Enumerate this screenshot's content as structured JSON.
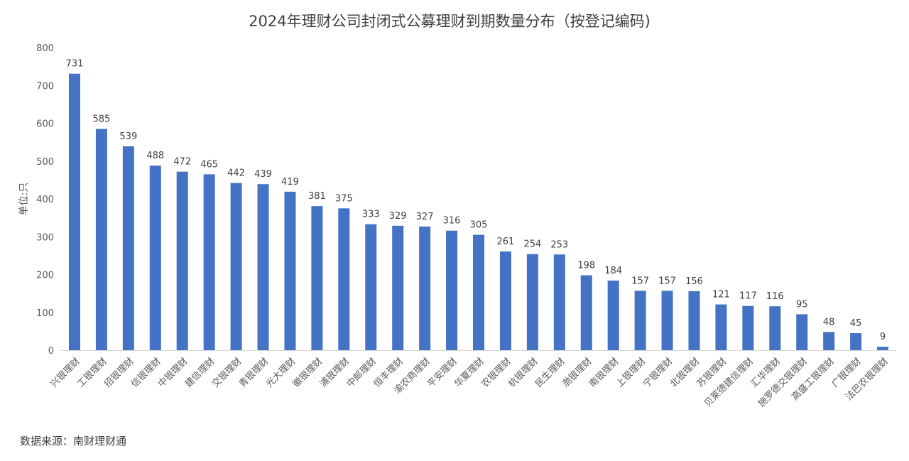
{
  "chart_data": {
    "type": "bar",
    "title": "2024年理财公司封闭式公募理财到期数量分布（按登记编码)",
    "ylabel": "单位:只",
    "ylim": [
      0,
      800
    ],
    "yticks": [
      0,
      100,
      200,
      300,
      400,
      500,
      600,
      700,
      800
    ],
    "grid": false,
    "categories": [
      "兴银理财",
      "工银理财",
      "招银理财",
      "信银理财",
      "中银理财",
      "建信理财",
      "交银理财",
      "青银理财",
      "光大理财",
      "徽银理财",
      "浦银理财",
      "中邮理财",
      "恒丰理财",
      "渝农商理财",
      "平安理财",
      "华夏理财",
      "农银理财",
      "杭银理财",
      "民生理财",
      "渤银理财",
      "南银理财",
      "上银理财",
      "宁银理财",
      "北银理财",
      "苏银理财",
      "贝莱德建信理财",
      "汇华理财",
      "施罗德交银理财",
      "高盛工银理财",
      "广银理财",
      "法巴农银理财"
    ],
    "values": [
      731,
      585,
      539,
      488,
      472,
      465,
      442,
      439,
      419,
      381,
      375,
      333,
      329,
      327,
      316,
      305,
      261,
      254,
      253,
      198,
      184,
      157,
      157,
      156,
      121,
      117,
      116,
      95,
      48,
      45,
      9
    ],
    "bar_color": "#4472C4",
    "source": "数据来源：南财理财通"
  }
}
